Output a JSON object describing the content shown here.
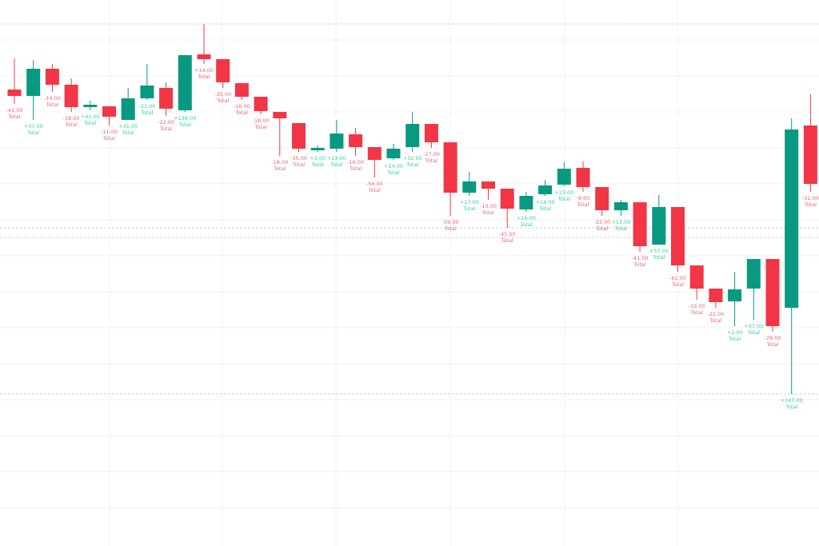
{
  "chart_data": {
    "type": "candlestick",
    "ylim": [
      0,
      683
    ],
    "up_color": "#089981",
    "down_color": "#f23645",
    "label_up_color": "#2fd39a",
    "label_down_color": "#f0646f",
    "note_word": "Total",
    "open": [
      571,
      563,
      597,
      577,
      549,
      550,
      533,
      560,
      573,
      545,
      615,
      609,
      579,
      562,
      543,
      529,
      495,
      497,
      515,
      499,
      485,
      499,
      528,
      505,
      442,
      456,
      447,
      421,
      440,
      452,
      473,
      449,
      420,
      430,
      377,
      424,
      351,
      322,
      306,
      322,
      359,
      298,
      526
    ],
    "close": [
      563,
      597,
      577,
      549,
      552,
      537,
      560,
      576,
      547,
      614,
      609,
      580,
      562,
      544,
      535,
      497,
      498,
      516,
      499,
      483,
      497,
      528,
      505,
      442,
      456,
      447,
      422,
      438,
      451,
      472,
      449,
      420,
      430,
      375,
      424,
      351,
      322,
      305,
      321,
      359,
      275,
      521,
      453
    ],
    "high": [
      610,
      608,
      603,
      585,
      557,
      550,
      573,
      603,
      580,
      614,
      653,
      609,
      579,
      562,
      543,
      529,
      501,
      533,
      523,
      499,
      503,
      543,
      528,
      505,
      468,
      456,
      447,
      443,
      458,
      480,
      481,
      449,
      433,
      430,
      439,
      424,
      351,
      322,
      343,
      359,
      359,
      535,
      565
    ],
    "low": [
      553,
      533,
      568,
      543,
      545,
      526,
      533,
      558,
      538,
      543,
      603,
      573,
      558,
      540,
      488,
      493,
      493,
      493,
      488,
      461,
      483,
      493,
      498,
      413,
      438,
      433,
      398,
      418,
      438,
      450,
      443,
      413,
      413,
      368,
      377,
      343,
      308,
      298,
      275,
      283,
      268,
      190,
      443
    ],
    "annotations": [
      "-41.00",
      "+37.00",
      "-14.00",
      "-18.00",
      "+41.00",
      "-11.00",
      "+31.00",
      "-31.00",
      "-22.00",
      "+138.00",
      "+14.00",
      "-35.00",
      "-16.00",
      "-18.00",
      "-18.00",
      "-35.00",
      "+3.00",
      "+23.00",
      "-16.00",
      "-58.00",
      "+14.00",
      "+32.00",
      "-27.00",
      "-59.00",
      "+17.00",
      "-13.00",
      "-45.00",
      "+16.00",
      "+14.00",
      "+23.00",
      "-9.00",
      "-33.00",
      "+13.00",
      "-41.00",
      "+57.00",
      "-61.00",
      "-33.00",
      "-22.00",
      "+2.00",
      "+37.00",
      "-78.00",
      "+147.00",
      "-31.00"
    ]
  }
}
